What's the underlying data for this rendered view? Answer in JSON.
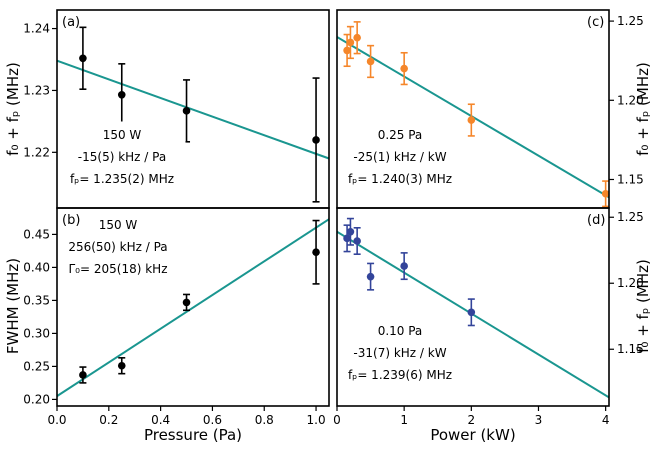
{
  "chart_data": [
    {
      "id": "a",
      "type": "scatter",
      "panel_label": "(a)",
      "xlabel": "",
      "ylabel": "f₀ + fₚ  (MHz)",
      "ylabel_side": "left",
      "xlim": [
        0,
        1.05
      ],
      "ylim": [
        1.211,
        1.243
      ],
      "xticks": [],
      "yticks": [
        1.22,
        1.23,
        1.24
      ],
      "ytick_labels": [
        "1.22",
        "1.23",
        "1.24"
      ],
      "marker_color": "#000000",
      "fit_color": "#1a9690",
      "points": [
        {
          "x": 0.1,
          "y": 1.2352,
          "err": 0.005
        },
        {
          "x": 0.25,
          "y": 1.2293,
          "err": 0.005
        },
        {
          "x": 0.5,
          "y": 1.2267,
          "err": 0.005
        },
        {
          "x": 1.0,
          "y": 1.222,
          "err": 0.01
        }
      ],
      "fit": {
        "x": [
          0,
          1.05
        ],
        "y": [
          1.2348,
          1.219
        ]
      },
      "annotation": [
        "150 W",
        "-15(5) kHz / Pa",
        "fₚ= 1.235(2) MHz"
      ]
    },
    {
      "id": "b",
      "type": "scatter",
      "panel_label": "(b)",
      "xlabel": "Pressure (Pa)",
      "ylabel": "FWHM  (MHz)",
      "ylabel_side": "left",
      "xlim": [
        0,
        1.05
      ],
      "ylim": [
        0.19,
        0.49
      ],
      "xticks": [
        0.0,
        0.2,
        0.4,
        0.6,
        0.8,
        1.0
      ],
      "xtick_labels": [
        "0.0",
        "0.2",
        "0.4",
        "0.6",
        "0.8",
        "1.0"
      ],
      "yticks": [
        0.2,
        0.25,
        0.3,
        0.35,
        0.4,
        0.45
      ],
      "ytick_labels": [
        "0.20",
        "0.25",
        "0.30",
        "0.35",
        "0.40",
        "0.45"
      ],
      "marker_color": "#000000",
      "fit_color": "#1a9690",
      "points": [
        {
          "x": 0.1,
          "y": 0.237,
          "err": 0.012
        },
        {
          "x": 0.25,
          "y": 0.251,
          "err": 0.012
        },
        {
          "x": 0.5,
          "y": 0.347,
          "err": 0.012
        },
        {
          "x": 1.0,
          "y": 0.423,
          "err": 0.048
        }
      ],
      "fit": {
        "x": [
          0,
          1.05
        ],
        "y": [
          0.205,
          0.473
        ]
      },
      "annotation": [
        "150 W",
        "256(50) kHz / Pa",
        "Γ₀= 205(18) kHz"
      ]
    },
    {
      "id": "c",
      "type": "scatter",
      "panel_label": "(c)",
      "xlabel": "",
      "ylabel": "f₀ + fₚ  (MHz)",
      "ylabel_side": "right",
      "xlim": [
        0,
        4.05
      ],
      "ylim": [
        1.132,
        1.257
      ],
      "xticks": [],
      "yticks": [
        1.15,
        1.2,
        1.25
      ],
      "ytick_labels": [
        "1.15",
        "1.20",
        "1.25"
      ],
      "marker_color": "#f5862a",
      "fit_color": "#1a9690",
      "points": [
        {
          "x": 0.15,
          "y": 1.2315,
          "err": 0.01
        },
        {
          "x": 0.2,
          "y": 1.2365,
          "err": 0.01
        },
        {
          "x": 0.3,
          "y": 1.2395,
          "err": 0.01
        },
        {
          "x": 0.5,
          "y": 1.2245,
          "err": 0.01
        },
        {
          "x": 1.0,
          "y": 1.22,
          "err": 0.01
        },
        {
          "x": 2.0,
          "y": 1.1875,
          "err": 0.01
        },
        {
          "x": 4.0,
          "y": 1.141,
          "err": 0.008
        }
      ],
      "fit": {
        "x": [
          0,
          4.05
        ],
        "y": [
          1.24,
          1.1388
        ]
      },
      "annotation": [
        "0.25 Pa",
        "-25(1) kHz / kW",
        "fₚ= 1.240(3) MHz"
      ]
    },
    {
      "id": "d",
      "type": "scatter",
      "panel_label": "(d)",
      "xlabel": "Power (kW)",
      "ylabel": "f₀ + fₚ  (MHz)",
      "ylabel_side": "right",
      "xlim": [
        0,
        4.05
      ],
      "ylim": [
        1.107,
        1.257
      ],
      "xticks": [
        0,
        1,
        2,
        3,
        4
      ],
      "xtick_labels": [
        "0",
        "1",
        "2",
        "3",
        "4"
      ],
      "yticks": [
        1.15,
        1.2,
        1.25
      ],
      "ytick_labels": [
        "1.15",
        "1.20",
        "1.25"
      ],
      "marker_color": "#33449a",
      "fit_color": "#1a9690",
      "points": [
        {
          "x": 0.15,
          "y": 1.234,
          "err": 0.01
        },
        {
          "x": 0.2,
          "y": 1.239,
          "err": 0.01
        },
        {
          "x": 0.3,
          "y": 1.232,
          "err": 0.01
        },
        {
          "x": 0.5,
          "y": 1.205,
          "err": 0.01
        },
        {
          "x": 1.0,
          "y": 1.213,
          "err": 0.01
        },
        {
          "x": 2.0,
          "y": 1.178,
          "err": 0.01
        }
      ],
      "fit": {
        "x": [
          0,
          4.05
        ],
        "y": [
          1.239,
          1.1135
        ]
      },
      "annotation": [
        "0.10 Pa",
        "-31(7) kHz / kW",
        "fₚ= 1.239(6) MHz"
      ]
    }
  ]
}
